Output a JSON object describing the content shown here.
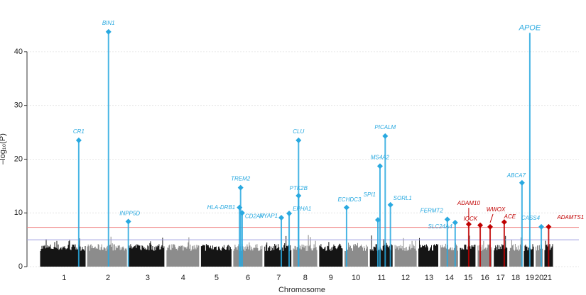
{
  "chart_data": {
    "type": "scatter",
    "xlabel": "Chromosome",
    "ylabel": "–log₁₀(P)",
    "xlim": [
      0,
      1
    ],
    "xticks": [
      {
        "value": 0.048,
        "label": "1"
      },
      {
        "value": 0.132,
        "label": "2"
      },
      {
        "value": 0.208,
        "label": "3"
      },
      {
        "value": 0.276,
        "label": "4"
      },
      {
        "value": 0.34,
        "label": "5"
      },
      {
        "value": 0.4,
        "label": "6"
      },
      {
        "value": 0.459,
        "label": "7"
      },
      {
        "value": 0.51,
        "label": "8"
      },
      {
        "value": 0.559,
        "label": "9"
      },
      {
        "value": 0.607,
        "label": "10"
      },
      {
        "value": 0.656,
        "label": "11"
      },
      {
        "value": 0.702,
        "label": "12"
      },
      {
        "value": 0.747,
        "label": "13"
      },
      {
        "value": 0.786,
        "label": "14"
      },
      {
        "value": 0.822,
        "label": "15"
      },
      {
        "value": 0.854,
        "label": "16"
      },
      {
        "value": 0.884,
        "label": "17"
      },
      {
        "value": 0.913,
        "label": "18"
      },
      {
        "value": 0.94,
        "label": "19"
      },
      {
        "value": 0.958,
        "label": "20"
      },
      {
        "value": 0.974,
        "label": "21"
      }
    ],
    "ylim": [
      0,
      45
    ],
    "yticks": [
      0,
      10,
      20,
      30,
      40
    ],
    "grid": true,
    "hlines": [
      {
        "value": 7.3,
        "color": "#f08080"
      },
      {
        "value": 5,
        "color": "#a0a0e0"
      }
    ],
    "points": [
      {
        "label": "CR1",
        "x": 0.076,
        "y": 23.5,
        "color": "#29a9e0"
      },
      {
        "label": "BIN1",
        "x": 0.133,
        "y": 43.7,
        "color": "#29a9e0"
      },
      {
        "label": "INPP5D",
        "x": 0.171,
        "y": 8.4,
        "color": "#29a9e0"
      },
      {
        "label": "TREM2",
        "x": 0.386,
        "y": 14.7,
        "color": "#29a9e0"
      },
      {
        "label": "HLA-DRB1",
        "x": 0.384,
        "y": 11.0,
        "color": "#29a9e0"
      },
      {
        "label": "CD2AP",
        "x": 0.389,
        "y": 10.0,
        "color": "#29a9e0"
      },
      {
        "label": "NYAP1",
        "x": 0.464,
        "y": 9.1,
        "color": "#29a9e0"
      },
      {
        "label": "EPHA1",
        "x": 0.479,
        "y": 9.9,
        "color": "#29a9e0"
      },
      {
        "label": "CLU",
        "x": 0.497,
        "y": 23.5,
        "color": "#29a9e0"
      },
      {
        "label": "PTK2B",
        "x": 0.497,
        "y": 13.2,
        "color": "#29a9e0"
      },
      {
        "label": "ECHDC3",
        "x": 0.589,
        "y": 11.0,
        "color": "#29a9e0"
      },
      {
        "label": "SPI1",
        "x": 0.649,
        "y": 8.7,
        "color": "#29a9e0"
      },
      {
        "label": "MS4A2",
        "x": 0.653,
        "y": 18.7,
        "color": "#29a9e0"
      },
      {
        "label": "PICALM",
        "x": 0.663,
        "y": 24.3,
        "color": "#29a9e0"
      },
      {
        "label": "SORL1",
        "x": 0.673,
        "y": 11.5,
        "color": "#29a9e0"
      },
      {
        "label": "FERMT2",
        "x": 0.782,
        "y": 8.8,
        "color": "#29a9e0"
      },
      {
        "label": "SLC24A4",
        "x": 0.797,
        "y": 8.2,
        "color": "#29a9e0"
      },
      {
        "label": "ADAM10",
        "x": 0.823,
        "y": 7.9,
        "color": "#c00000"
      },
      {
        "label": "IQCK",
        "x": 0.845,
        "y": 7.7,
        "color": "#c00000"
      },
      {
        "label": "WWOX",
        "x": 0.864,
        "y": 7.4,
        "color": "#c00000"
      },
      {
        "label": "ACE",
        "x": 0.891,
        "y": 8.3,
        "color": "#c00000"
      },
      {
        "label": "ABCA7",
        "x": 0.925,
        "y": 15.6,
        "color": "#29a9e0"
      },
      {
        "label": "APOE",
        "x": 0.94,
        "y": 43.5,
        "color": "#29a9e0"
      },
      {
        "label": "CASS4",
        "x": 0.962,
        "y": 7.4,
        "color": "#29a9e0"
      },
      {
        "label": "ADAMTS1",
        "x": 0.976,
        "y": 7.4,
        "color": "#c00000"
      }
    ]
  }
}
